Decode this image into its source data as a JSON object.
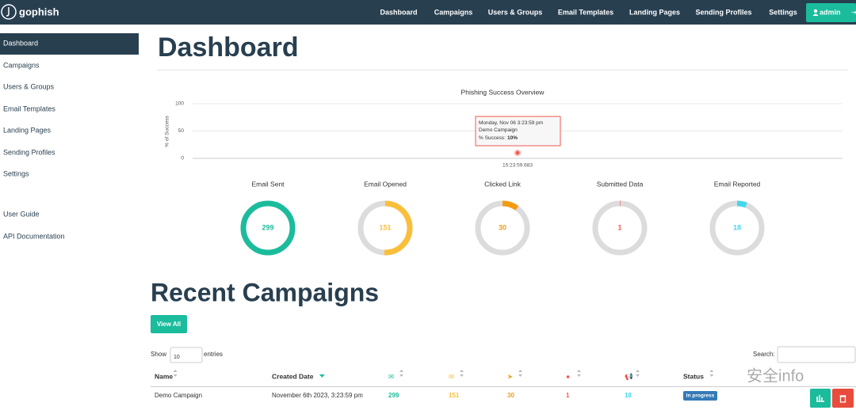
{
  "nav": {
    "brand": "gophish",
    "links": [
      "Dashboard",
      "Campaigns",
      "Users & Groups",
      "Email Templates",
      "Landing Pages",
      "Sending Profiles",
      "Settings"
    ],
    "user": "admin"
  },
  "sidebar": {
    "items": [
      "Dashboard",
      "Campaigns",
      "Users & Groups",
      "Email Templates",
      "Landing Pages",
      "Sending Profiles",
      "Settings"
    ],
    "active": 0,
    "help": [
      "User Guide",
      "API Documentation"
    ]
  },
  "page_title": "Dashboard",
  "chart_data": {
    "type": "line",
    "title": "Phishing Success Overview",
    "y_label": "% of Success",
    "x": [
      "15:23:59.683"
    ],
    "series": [
      {
        "name": "Demo Campaign",
        "color": "#f05b4f",
        "values": [
          10
        ],
        "value_labels": [
          "10%"
        ]
      }
    ],
    "ylim": [
      0,
      100
    ],
    "yticks": [
      0,
      50,
      100
    ],
    "grid": true,
    "tooltip": {
      "date": "Monday, Nov 06 3:23:59 pm",
      "label": "% Success:"
    }
  },
  "stats": [
    {
      "label": "Email Sent",
      "value": 299,
      "color": "#1abc9c"
    },
    {
      "label": "Email Opened",
      "value": 151,
      "color": "#f9bf3b"
    },
    {
      "label": "Clicked Link",
      "value": 30,
      "color": "#f39c12"
    },
    {
      "label": "Submitted Data",
      "value": 1,
      "color": "#f05b4f"
    },
    {
      "label": "Email Reported",
      "value": 18,
      "color": "#45d6ef"
    }
  ],
  "recent": {
    "title": "Recent Campaigns",
    "view_all": "View All",
    "show": "Show",
    "page_length": 10,
    "entries": "entries",
    "search": "Search:",
    "columns": [
      "Name",
      "Created Date",
      null,
      null,
      null,
      null,
      null,
      "Status"
    ],
    "rows": [
      [
        "Demo Campaign",
        "November 6th 2023, 3:23:59 pm",
        299,
        151,
        30,
        1,
        18,
        "In progress"
      ]
    ]
  },
  "watermark": "安全info"
}
